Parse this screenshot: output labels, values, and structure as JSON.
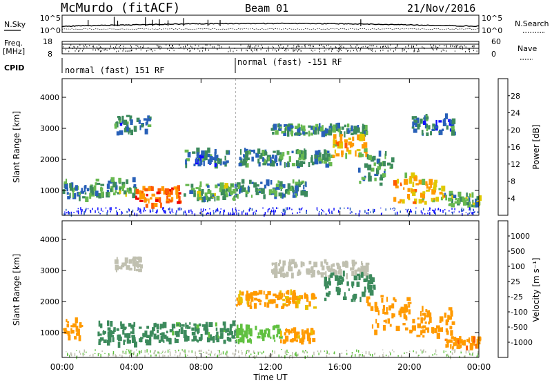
{
  "header": {
    "station": "McMurdo (fitACF)",
    "beam": "Beam 01",
    "date": "21/Nov/2016"
  },
  "top_panels": {
    "nsky_label": "N.Sky",
    "nsky_ticks": [
      "10^5",
      "10^0"
    ],
    "nsearch_label": "N.Search",
    "nsearch_ticks": [
      "10^5",
      "10^0"
    ],
    "freq_label": "Freq.",
    "freq_unit": "[MHz]",
    "freq_ticks": [
      "18",
      "8"
    ],
    "nave_label": "Nave",
    "nave_ticks": [
      "60",
      "0"
    ],
    "cpid_label": "CPID",
    "cpid_segments": [
      {
        "label": "normal (fast) 151 RF",
        "start_hour": 0
      },
      {
        "label": "normal (fast) -151 RF",
        "start_hour": 10
      }
    ]
  },
  "chart_data": [
    {
      "type": "heatmap",
      "name": "power",
      "xlabel": "",
      "ylabel": "Slant Range [km]",
      "x_range_hours": [
        0,
        24
      ],
      "ylim": [
        200,
        4600
      ],
      "y_ticks": [
        "1000",
        "2000",
        "3000",
        "4000"
      ],
      "colorbar": {
        "label": "Power [dB]",
        "ticks": [
          "4",
          "8",
          "12",
          "16",
          "20",
          "24",
          "28"
        ],
        "colors": [
          "#1010ff",
          "#2860b8",
          "#3c8a5c",
          "#68b850",
          "#e0c800",
          "#ff9a00",
          "#ff5a00",
          "#ee0000"
        ]
      },
      "echo_regions": [
        {
          "t0": 0.0,
          "t1": 1.8,
          "r0": 700,
          "r1": 1300,
          "level": 10
        },
        {
          "t0": 1.8,
          "t1": 4.2,
          "r0": 800,
          "r1": 1350,
          "level": 12
        },
        {
          "t0": 4.2,
          "t1": 6.8,
          "r0": 500,
          "r1": 1100,
          "level": 26
        },
        {
          "t0": 6.8,
          "t1": 10.0,
          "r0": 700,
          "r1": 1200,
          "level": 12
        },
        {
          "t0": 10.0,
          "t1": 14.0,
          "r0": 800,
          "r1": 1300,
          "level": 10
        },
        {
          "t0": 3.0,
          "t1": 5.0,
          "r0": 2800,
          "r1": 3400,
          "level": 8
        },
        {
          "t0": 7.0,
          "t1": 9.5,
          "r0": 1800,
          "r1": 2300,
          "level": 8
        },
        {
          "t0": 10.0,
          "t1": 15.5,
          "r0": 1800,
          "r1": 2300,
          "level": 10
        },
        {
          "t0": 12.0,
          "t1": 17.5,
          "r0": 2800,
          "r1": 3100,
          "level": 10
        },
        {
          "t0": 15.5,
          "t1": 17.5,
          "r0": 2100,
          "r1": 2800,
          "level": 20
        },
        {
          "t0": 17.0,
          "t1": 19.0,
          "r0": 1200,
          "r1": 2200,
          "level": 10
        },
        {
          "t0": 19.0,
          "t1": 22.0,
          "r0": 600,
          "r1": 1500,
          "level": 20
        },
        {
          "t0": 22.0,
          "t1": 24.0,
          "r0": 500,
          "r1": 900,
          "level": 12
        },
        {
          "t0": 20.0,
          "t1": 22.5,
          "r0": 2800,
          "r1": 3400,
          "level": 8
        }
      ]
    },
    {
      "type": "heatmap",
      "name": "velocity",
      "xlabel": "Time UT",
      "ylabel": "Slant Range [km]",
      "x_range_hours": [
        0,
        24
      ],
      "x_ticks": [
        "00:00",
        "04:00",
        "08:00",
        "12:00",
        "16:00",
        "20:00",
        "00:00"
      ],
      "ylim": [
        200,
        4600
      ],
      "y_ticks": [
        "1000",
        "2000",
        "3000",
        "4000"
      ],
      "colorbar": {
        "label": "Velocity [m s⁻¹]",
        "ticks": [
          "1000",
          "500",
          "100",
          "25",
          "-25",
          "-100",
          "-500",
          "-1000"
        ],
        "colors": [
          "#2040c8",
          "#4080b0",
          "#3c8a5c",
          "#60c040",
          "#c0c0b0",
          "#e8c000",
          "#ff9a00",
          "#ff6000",
          "#ee0000"
        ]
      },
      "echo_regions": [
        {
          "t0": 0.0,
          "t1": 1.0,
          "r0": 800,
          "r1": 1600,
          "level": -300
        },
        {
          "t0": 2.0,
          "t1": 5.5,
          "r0": 600,
          "r1": 1300,
          "level": 200
        },
        {
          "t0": 5.5,
          "t1": 10.0,
          "r0": 700,
          "r1": 1300,
          "level": 150
        },
        {
          "t0": 10.0,
          "t1": 12.5,
          "r0": 700,
          "r1": 1200,
          "level": 60
        },
        {
          "t0": 12.5,
          "t1": 14.5,
          "r0": 700,
          "r1": 1100,
          "level": -150
        },
        {
          "t0": 3.0,
          "t1": 4.5,
          "r0": 3000,
          "r1": 3400,
          "level": 0
        },
        {
          "t0": 10.0,
          "t1": 14.5,
          "r0": 1800,
          "r1": 2300,
          "level": -120
        },
        {
          "t0": 12.0,
          "t1": 17.5,
          "r0": 2800,
          "r1": 3300,
          "level": 0
        },
        {
          "t0": 15.0,
          "t1": 18.0,
          "r0": 2000,
          "r1": 2900,
          "level": 200
        },
        {
          "t0": 17.5,
          "t1": 20.0,
          "r0": 1000,
          "r1": 2200,
          "level": -250
        },
        {
          "t0": 20.0,
          "t1": 22.5,
          "r0": 800,
          "r1": 1800,
          "level": -300
        },
        {
          "t0": 22.0,
          "t1": 24.0,
          "r0": 500,
          "r1": 800,
          "level": -400
        }
      ]
    }
  ]
}
